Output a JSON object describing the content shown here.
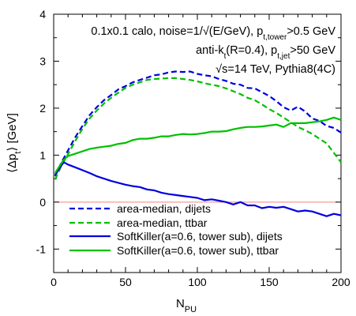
{
  "chart_data": {
    "type": "line",
    "xlabel": "N",
    "xlabel_sub": "PU",
    "ylabel": "⟨Δp",
    "ylabel_sub": "t",
    "ylabel_tail": "⟩ [GeV]",
    "xlim": [
      0,
      200
    ],
    "ylim": [
      -1.5,
      4
    ],
    "x_ticks": [
      0,
      50,
      100,
      150,
      200
    ],
    "y_ticks": [
      -1,
      0,
      1,
      2,
      3,
      4
    ],
    "grid": false,
    "zero_line": {
      "y": 0,
      "color": "#f08080"
    },
    "legend_position": "bottom-right",
    "annotations": [
      {
        "text": "0.1x0.1 calo, noise=1/√(E/GeV), p",
        "sub": "t,tower",
        "tail": ">0.5 GeV"
      },
      {
        "text": "anti-k",
        "sub": "t",
        "tail": "(R=0.4), p",
        "sub2": "t,jet",
        "tail2": ">50 GeV"
      },
      {
        "text": "√s=14 TeV, Pythia8(4C)",
        "sub": "",
        "tail": ""
      }
    ],
    "series": [
      {
        "name": "area-median, dijets",
        "color": "#0000e0",
        "dash": "dashed",
        "x": [
          1,
          5,
          10,
          15,
          20,
          25,
          30,
          35,
          40,
          45,
          50,
          55,
          60,
          65,
          70,
          75,
          80,
          85,
          90,
          95,
          100,
          105,
          110,
          115,
          120,
          125,
          130,
          135,
          140,
          145,
          150,
          155,
          160,
          165,
          170,
          175,
          180,
          185,
          190,
          195,
          200
        ],
        "values": [
          0.55,
          0.82,
          1.1,
          1.38,
          1.62,
          1.85,
          2.02,
          2.17,
          2.28,
          2.4,
          2.47,
          2.55,
          2.6,
          2.65,
          2.7,
          2.72,
          2.76,
          2.78,
          2.77,
          2.78,
          2.73,
          2.7,
          2.68,
          2.62,
          2.58,
          2.52,
          2.5,
          2.43,
          2.42,
          2.34,
          2.26,
          2.15,
          2.02,
          1.95,
          2.03,
          1.93,
          1.78,
          1.73,
          1.62,
          1.58,
          1.48
        ]
      },
      {
        "name": "area-median, ttbar",
        "color": "#00c000",
        "dash": "dashed",
        "x": [
          1,
          5,
          10,
          15,
          20,
          25,
          30,
          35,
          40,
          45,
          50,
          55,
          60,
          65,
          70,
          75,
          80,
          85,
          90,
          95,
          100,
          105,
          110,
          115,
          120,
          125,
          130,
          135,
          140,
          145,
          150,
          155,
          160,
          165,
          170,
          175,
          180,
          185,
          190,
          195,
          200
        ],
        "values": [
          0.48,
          0.75,
          1.02,
          1.3,
          1.56,
          1.78,
          1.95,
          2.1,
          2.22,
          2.33,
          2.43,
          2.5,
          2.55,
          2.6,
          2.62,
          2.63,
          2.64,
          2.64,
          2.62,
          2.6,
          2.57,
          2.53,
          2.5,
          2.47,
          2.42,
          2.36,
          2.3,
          2.22,
          2.17,
          2.08,
          1.98,
          1.9,
          1.8,
          1.7,
          1.6,
          1.53,
          1.45,
          1.35,
          1.25,
          1.05,
          0.85
        ]
      },
      {
        "name": "SoftKiller(a=0.6, tower sub), dijets",
        "color": "#0000e0",
        "dash": "solid",
        "x": [
          1,
          7,
          10,
          15,
          20,
          25,
          30,
          35,
          40,
          45,
          50,
          55,
          60,
          65,
          70,
          75,
          80,
          85,
          90,
          95,
          100,
          105,
          110,
          115,
          120,
          125,
          130,
          135,
          140,
          145,
          150,
          155,
          160,
          165,
          170,
          175,
          180,
          185,
          190,
          195,
          200
        ],
        "values": [
          0.58,
          0.85,
          0.8,
          0.74,
          0.68,
          0.62,
          0.55,
          0.5,
          0.45,
          0.41,
          0.37,
          0.34,
          0.32,
          0.27,
          0.25,
          0.2,
          0.17,
          0.15,
          0.13,
          0.11,
          0.09,
          0.04,
          0.06,
          0.03,
          0.0,
          -0.05,
          0.0,
          -0.07,
          -0.07,
          -0.13,
          -0.1,
          -0.12,
          -0.1,
          -0.15,
          -0.2,
          -0.18,
          -0.2,
          -0.25,
          -0.3,
          -0.25,
          -0.28
        ]
      },
      {
        "name": "SoftKiller(a=0.6, tower sub), ttbar",
        "color": "#00c000",
        "dash": "solid",
        "x": [
          1,
          7,
          10,
          15,
          20,
          25,
          30,
          35,
          40,
          45,
          50,
          55,
          60,
          65,
          70,
          75,
          80,
          85,
          90,
          95,
          100,
          105,
          110,
          115,
          120,
          125,
          130,
          135,
          140,
          145,
          150,
          155,
          160,
          165,
          170,
          175,
          180,
          185,
          190,
          195,
          200
        ],
        "values": [
          0.62,
          0.9,
          0.98,
          1.03,
          1.08,
          1.13,
          1.16,
          1.18,
          1.2,
          1.24,
          1.26,
          1.32,
          1.35,
          1.35,
          1.37,
          1.4,
          1.4,
          1.43,
          1.45,
          1.44,
          1.45,
          1.47,
          1.5,
          1.5,
          1.51,
          1.55,
          1.58,
          1.6,
          1.6,
          1.61,
          1.63,
          1.65,
          1.6,
          1.68,
          1.68,
          1.68,
          1.7,
          1.72,
          1.75,
          1.8,
          1.75
        ]
      }
    ]
  }
}
